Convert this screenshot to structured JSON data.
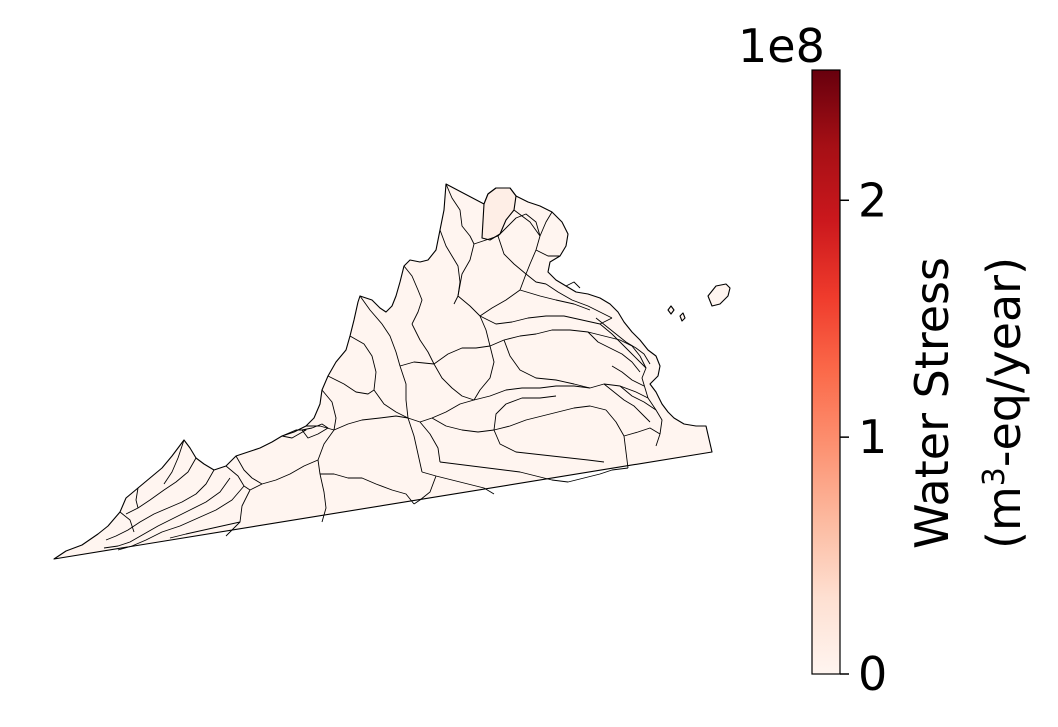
{
  "map": {
    "region_fill": "#fff5f0",
    "region_fill_nova": "#feeee6",
    "boundary_color": "#000000"
  },
  "colorbar": {
    "colormap": "Reds",
    "label_line1": "Water Stress",
    "label_line2_prefix": "(m",
    "label_line2_sup": "3",
    "label_line2_suffix": "-eq/year)",
    "scale_exponent_label": "1e8",
    "vmin": 0,
    "vmax": 2.55,
    "ticks": [
      {
        "value": 0,
        "label": "0"
      },
      {
        "value": 1,
        "label": "1"
      },
      {
        "value": 2,
        "label": "2"
      }
    ],
    "colors": [
      "#fff5f0",
      "#fee0d2",
      "#fcbba1",
      "#fc9272",
      "#fb6a4a",
      "#ef3b2c",
      "#cb181d",
      "#a50f15",
      "#67000d"
    ]
  }
}
